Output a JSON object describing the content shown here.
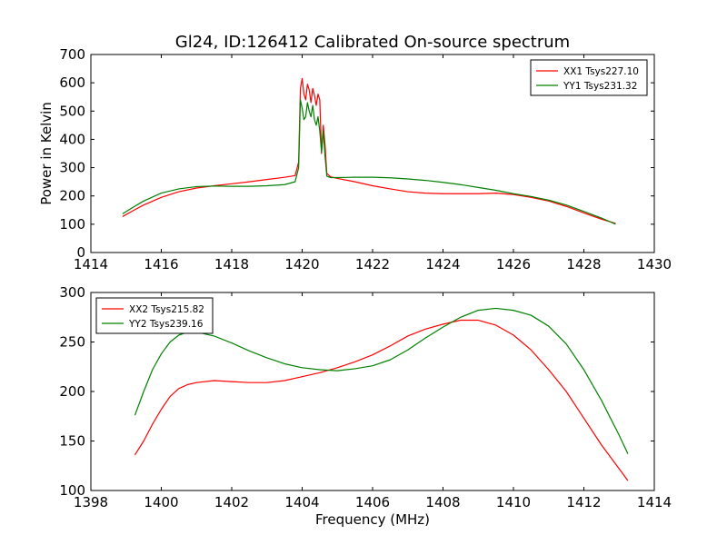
{
  "figure": {
    "title": "Gl24, ID:126412 Calibrated On-source spectrum"
  },
  "chart_data": [
    {
      "type": "line",
      "title": "Gl24, ID:126412 Calibrated On-source spectrum",
      "xlabel": "",
      "ylabel": "Power in Kelvin",
      "xlim": [
        1414,
        1430
      ],
      "ylim": [
        0,
        700
      ],
      "xticks": [
        1414,
        1416,
        1418,
        1420,
        1422,
        1424,
        1426,
        1428,
        1430
      ],
      "yticks": [
        0,
        100,
        200,
        300,
        400,
        500,
        600,
        700
      ],
      "legend_position": "upper right",
      "grid": false,
      "series": [
        {
          "name": "XX1 Tsys227.10",
          "color": "#ff0000",
          "x": [
            1414.9,
            1415.2,
            1415.5,
            1416.0,
            1416.5,
            1417.0,
            1417.5,
            1418.0,
            1418.5,
            1419.0,
            1419.5,
            1419.8,
            1419.9,
            1419.95,
            1420.0,
            1420.05,
            1420.1,
            1420.15,
            1420.2,
            1420.25,
            1420.3,
            1420.35,
            1420.4,
            1420.45,
            1420.5,
            1420.55,
            1420.6,
            1420.65,
            1420.7,
            1420.8,
            1421.0,
            1421.5,
            1422.0,
            1422.5,
            1423.0,
            1423.5,
            1424.0,
            1424.5,
            1425.0,
            1425.5,
            1426.0,
            1426.5,
            1427.0,
            1427.5,
            1428.0,
            1428.5,
            1428.9
          ],
          "y": [
            127,
            148,
            168,
            195,
            215,
            228,
            236,
            243,
            250,
            258,
            266,
            272,
            320,
            580,
            615,
            560,
            540,
            595,
            575,
            530,
            580,
            555,
            520,
            560,
            540,
            350,
            450,
            380,
            280,
            268,
            262,
            250,
            236,
            225,
            215,
            210,
            208,
            208,
            208,
            210,
            205,
            195,
            182,
            163,
            140,
            118,
            103
          ]
        },
        {
          "name": "YY1 Tsys231.32",
          "color": "#008000",
          "x": [
            1414.9,
            1415.2,
            1415.5,
            1416.0,
            1416.5,
            1417.0,
            1417.5,
            1418.0,
            1418.5,
            1419.0,
            1419.5,
            1419.8,
            1419.9,
            1419.95,
            1420.0,
            1420.05,
            1420.1,
            1420.15,
            1420.2,
            1420.25,
            1420.3,
            1420.35,
            1420.4,
            1420.45,
            1420.5,
            1420.55,
            1420.6,
            1420.65,
            1420.7,
            1420.8,
            1421.0,
            1421.5,
            1422.0,
            1422.5,
            1423.0,
            1423.5,
            1424.0,
            1424.5,
            1425.0,
            1425.5,
            1426.0,
            1426.5,
            1427.0,
            1427.5,
            1428.0,
            1428.5,
            1428.9
          ],
          "y": [
            137,
            160,
            182,
            210,
            225,
            233,
            235,
            234,
            234,
            236,
            240,
            250,
            300,
            540,
            510,
            470,
            480,
            530,
            500,
            480,
            520,
            470,
            450,
            480,
            430,
            355,
            430,
            340,
            270,
            265,
            265,
            266,
            266,
            264,
            260,
            255,
            248,
            240,
            230,
            220,
            208,
            198,
            185,
            168,
            145,
            122,
            100
          ]
        }
      ]
    },
    {
      "type": "line",
      "title": "",
      "xlabel": "Frequency (MHz)",
      "ylabel": "",
      "xlim": [
        1398,
        1414
      ],
      "ylim": [
        100,
        300
      ],
      "xticks": [
        1398,
        1400,
        1402,
        1404,
        1406,
        1408,
        1410,
        1412,
        1414
      ],
      "yticks": [
        100,
        150,
        200,
        250,
        300
      ],
      "legend_position": "upper left",
      "grid": false,
      "series": [
        {
          "name": "XX2 Tsys215.82",
          "color": "#ff0000",
          "x": [
            1399.25,
            1399.5,
            1399.75,
            1400.0,
            1400.25,
            1400.5,
            1400.75,
            1401.0,
            1401.5,
            1402.0,
            1402.5,
            1403.0,
            1403.5,
            1404.0,
            1404.5,
            1405.0,
            1405.5,
            1406.0,
            1406.5,
            1407.0,
            1407.5,
            1408.0,
            1408.5,
            1409.0,
            1409.5,
            1410.0,
            1410.5,
            1411.0,
            1411.5,
            1412.0,
            1412.5,
            1413.0,
            1413.25
          ],
          "y": [
            136,
            150,
            167,
            182,
            195,
            203,
            207,
            209,
            211,
            210,
            209,
            209,
            211,
            215,
            219,
            224,
            230,
            237,
            246,
            256,
            263,
            268,
            272,
            272,
            267,
            257,
            242,
            222,
            200,
            173,
            146,
            122,
            110
          ]
        },
        {
          "name": "YY2 Tsys239.16",
          "color": "#008000",
          "x": [
            1399.25,
            1399.5,
            1399.75,
            1400.0,
            1400.25,
            1400.5,
            1400.75,
            1401.0,
            1401.5,
            1402.0,
            1402.5,
            1403.0,
            1403.5,
            1404.0,
            1404.5,
            1405.0,
            1405.5,
            1406.0,
            1406.5,
            1407.0,
            1407.5,
            1408.0,
            1408.5,
            1409.0,
            1409.5,
            1410.0,
            1410.5,
            1411.0,
            1411.5,
            1412.0,
            1412.5,
            1413.0,
            1413.25
          ],
          "y": [
            176,
            200,
            222,
            238,
            250,
            257,
            260,
            260,
            256,
            249,
            241,
            234,
            228,
            224,
            222,
            221,
            223,
            226,
            232,
            242,
            254,
            265,
            275,
            282,
            284,
            282,
            277,
            266,
            248,
            222,
            191,
            156,
            137
          ]
        }
      ]
    }
  ]
}
